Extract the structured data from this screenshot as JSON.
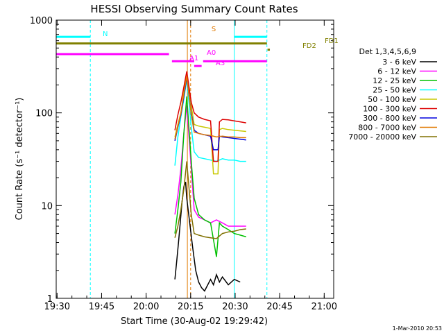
{
  "chart_data": {
    "type": "line",
    "title": "HESSI Observing Summary Count Rates",
    "xlabel": "Start Time (30-Aug-02 19:29:42)",
    "ylabel": "Count Rate (s⁻¹ detector⁻¹)",
    "yscale": "log",
    "ylim": [
      1,
      1000
    ],
    "yticks": [
      1,
      10,
      100,
      1000
    ],
    "ytick_labels": [
      "1",
      "10",
      "100",
      "1000"
    ],
    "xlim_minutes": [
      0,
      75
    ],
    "xticks_minutes": [
      0,
      15,
      30,
      45,
      60
    ],
    "xtick_labels": [
      "19:30",
      "19:45",
      "20:00",
      "20:15",
      "20:30",
      "20:45",
      "21:00"
    ],
    "xtick_positions_minutes": [
      0.3,
      15.3,
      30.3,
      45.3,
      60.3,
      75.3,
      90.3
    ],
    "footer": "1-Mar-2010 20:53",
    "legend_placement": "right",
    "legend_title": "Det 1,3,4,5,6,9",
    "series": [
      {
        "name": "3 - 6 keV",
        "color": "#000000",
        "x": [
          40.0,
          40.6,
          41.2,
          41.8,
          42.4,
          43.0,
          43.6,
          44.0,
          46.0,
          47.0,
          48.0,
          49.0,
          50.0,
          52.0,
          53.0,
          54.0,
          55.0,
          56.0,
          58.0,
          60.0,
          62.0
        ],
        "y": [
          1.6,
          2.5,
          4.0,
          6.5,
          11,
          16,
          18,
          12,
          3.5,
          2.0,
          1.5,
          1.3,
          1.2,
          1.6,
          1.4,
          1.8,
          1.5,
          1.7,
          1.4,
          1.6,
          1.5
        ]
      },
      {
        "name": "6 - 12 keV",
        "color": "#ff00ff",
        "x": [
          40.0,
          41.0,
          42.0,
          43.0,
          44.0,
          45.5,
          46.5,
          48.0,
          50.0,
          52.0,
          54.0,
          56.0,
          58.0,
          60.0,
          62.0,
          64.0
        ],
        "y": [
          8,
          13,
          25,
          60,
          120,
          25,
          9,
          7.5,
          7,
          6.5,
          7,
          6.5,
          6,
          6,
          6,
          6
        ]
      },
      {
        "name": "12 - 25 keV",
        "color": "#00c000",
        "x": [
          40.0,
          41.0,
          42.0,
          43.0,
          44.0,
          45.5,
          46.5,
          48.0,
          50.0,
          52.0,
          54.0,
          55.0,
          56.0,
          58.0,
          60.0,
          62.0,
          64.0
        ],
        "y": [
          5,
          9,
          18,
          60,
          150,
          30,
          12,
          8,
          7,
          6.5,
          2.8,
          6.5,
          6,
          5.5,
          5,
          4.8,
          4.6
        ]
      },
      {
        "name": "25 - 50 keV",
        "color": "#00ffff",
        "x": [
          40.0,
          41.0,
          42.0,
          43.0,
          44.0,
          45.5,
          46.5,
          48.0,
          50.0,
          52.0,
          54.0,
          56.0,
          58.0,
          60.0,
          62.0,
          64.0
        ],
        "y": [
          27,
          55,
          90,
          140,
          230,
          70,
          38,
          33,
          32,
          31,
          30,
          32,
          31,
          31,
          30,
          30
        ]
      },
      {
        "name": "50 - 100 keV",
        "color": "#c8c800",
        "x": [
          40.0,
          41.0,
          42.0,
          43.0,
          44.0,
          45.5,
          46.5,
          48.0,
          50.0,
          52.0,
          53.0,
          54.5,
          55.0,
          56.0,
          58.0,
          60.0,
          62.0,
          64.0
        ],
        "y": [
          55,
          75,
          100,
          170,
          260,
          120,
          75,
          72,
          70,
          68,
          22,
          22,
          66,
          68,
          66,
          65,
          64,
          63
        ]
      },
      {
        "name": "100 - 300 keV",
        "color": "#dd0000",
        "x": [
          40.0,
          41.0,
          42.0,
          43.0,
          44.0,
          45.5,
          46.5,
          48.0,
          50.0,
          52.0,
          53.0,
          54.5,
          55.0,
          56.0,
          58.0,
          60.0,
          62.0,
          64.0
        ],
        "y": [
          65,
          95,
          130,
          190,
          280,
          130,
          100,
          90,
          85,
          82,
          30,
          30,
          80,
          85,
          84,
          82,
          80,
          78
        ]
      },
      {
        "name": "300 - 800 keV",
        "color": "#0000dd",
        "x": [
          40.0,
          41.0,
          42.0,
          43.0,
          44.0,
          45.5,
          46.5,
          48.0,
          50.0,
          52.0,
          53.0,
          54.5,
          55.0,
          56.0,
          58.0,
          60.0,
          62.0,
          64.0
        ],
        "y": [
          50,
          70,
          95,
          150,
          240,
          100,
          65,
          60,
          58,
          56,
          40,
          40,
          56,
          55,
          54,
          53,
          52,
          51
        ]
      },
      {
        "name": "800 - 7000 keV",
        "color": "#e07800",
        "x": [
          40.0,
          41.0,
          42.0,
          43.0,
          44.0,
          45.5,
          46.5,
          48.0,
          50.0,
          52.0,
          54.0,
          56.0,
          58.0,
          60.0,
          62.0,
          64.0
        ],
        "y": [
          52,
          72,
          98,
          160,
          250,
          95,
          62,
          60,
          58,
          57,
          55,
          56,
          55,
          55,
          54,
          54
        ]
      },
      {
        "name": "7000 - 20000 keV",
        "color": "#807000",
        "x": [
          40.0,
          41.0,
          42.0,
          43.0,
          44.0,
          45.5,
          46.5,
          48.0,
          50.0,
          52.0,
          54.0,
          56.0,
          58.0,
          60.0,
          62.0,
          64.0
        ],
        "y": [
          4.5,
          6,
          9,
          15,
          30,
          8,
          5,
          4.8,
          4.6,
          4.5,
          4.4,
          5,
          5.2,
          5.3,
          5.5,
          5.6
        ]
      }
    ],
    "flag_bars": [
      {
        "label": "N",
        "color": "#00ffff",
        "start": 0,
        "end": 11.5,
        "y": 660
      },
      {
        "label": "N",
        "color": "#00ffff",
        "start": 60.0,
        "end": 71.0,
        "y": 660
      },
      {
        "label": "S",
        "color": "#808000",
        "start": 0,
        "end": 71.0,
        "y": 560
      },
      {
        "label": "FD1",
        "color": "#808000",
        "start": 71.2,
        "end": 72.0,
        "y": 480
      },
      {
        "label": "A0",
        "color": "#ff00ff",
        "start": 0,
        "end": 38.0,
        "y": 430
      },
      {
        "label": "A1",
        "color": "#ff00ff",
        "start": 39.0,
        "end": 46.5,
        "y": 360
      },
      {
        "label": "A1",
        "color": "#ff00ff",
        "start": 49.5,
        "end": 71.0,
        "y": 360
      },
      {
        "label": "A3",
        "color": "#ff00ff",
        "start": 46.5,
        "end": 49.0,
        "y": 320
      }
    ],
    "vertical_markers": [
      {
        "color": "#00ffff",
        "x": 0,
        "style": "solid"
      },
      {
        "color": "#00ffff",
        "x": 11.5,
        "style": "dashed"
      },
      {
        "color": "#e07800",
        "x": 44.2,
        "style": "solid"
      },
      {
        "color": "#e07800",
        "x": 45.3,
        "style": "dashed"
      },
      {
        "color": "#00ffff",
        "x": 60.0,
        "style": "solid"
      },
      {
        "color": "#00ffff",
        "x": 71.0,
        "style": "dashed"
      }
    ],
    "bar_labels": [
      {
        "text": "N",
        "color": "#00ffff"
      },
      {
        "text": "S",
        "color": "#e07800"
      },
      {
        "text": "A0",
        "color": "#ff00ff"
      },
      {
        "text": "A1",
        "color": "#ff00ff"
      },
      {
        "text": "A3",
        "color": "#ff00ff"
      },
      {
        "text": "FD1",
        "color": "#808000"
      },
      {
        "text": "FD2",
        "color": "#808000"
      }
    ]
  }
}
